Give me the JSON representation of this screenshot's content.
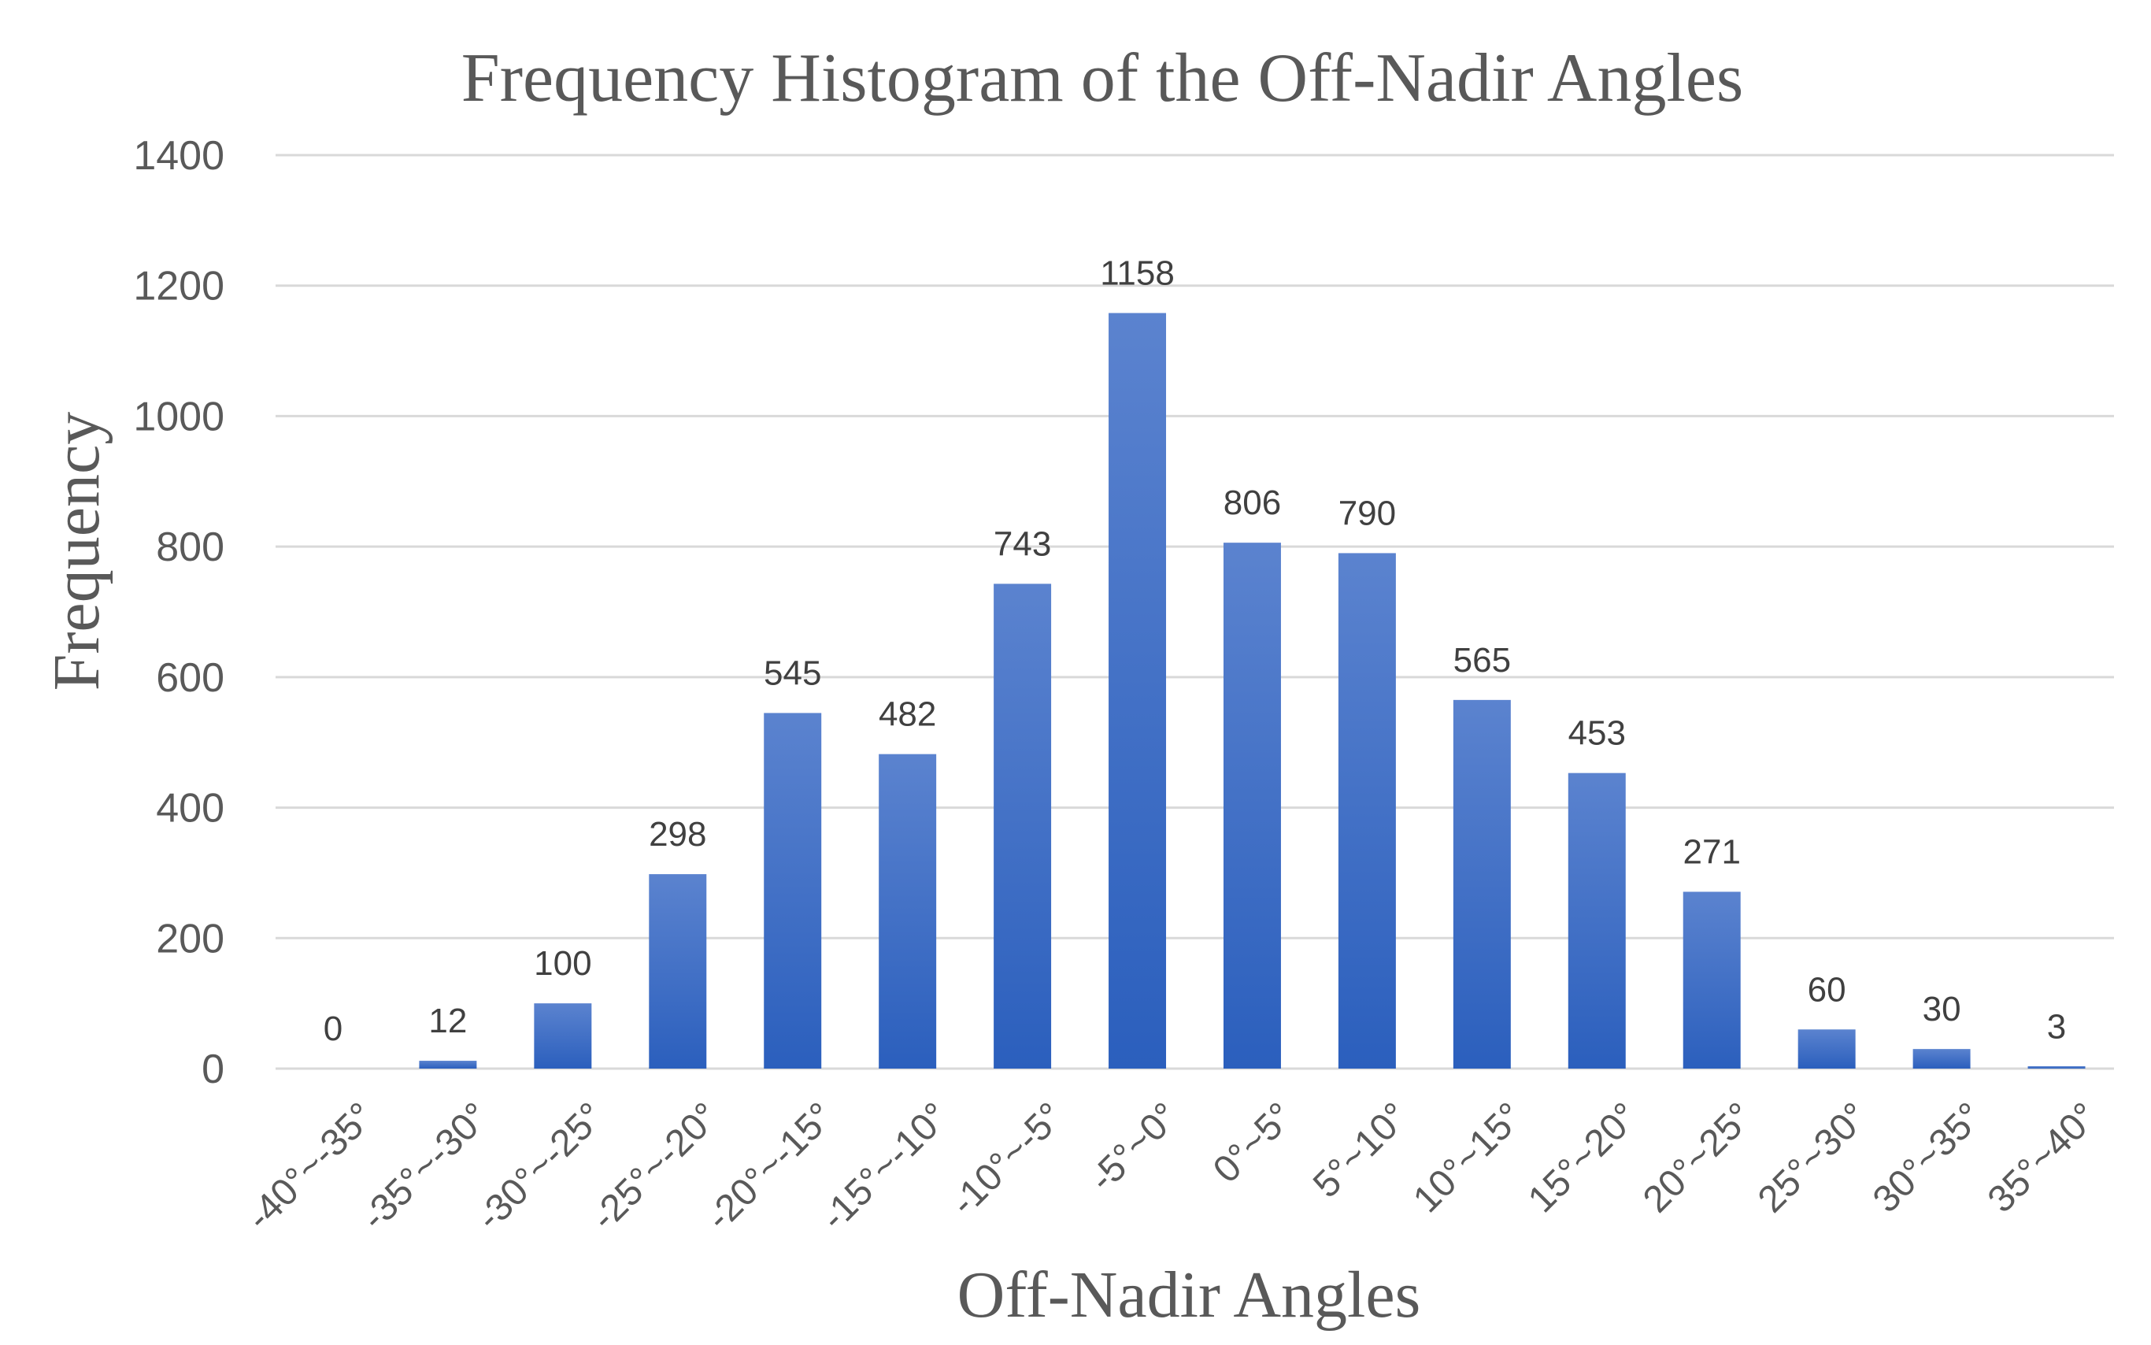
{
  "chart_data": {
    "type": "bar",
    "title": "Frequency Histogram of the Off-Nadir Angles",
    "xlabel": "Off-Nadir Angles",
    "ylabel": "Frequency",
    "categories": [
      "-40°~-35°",
      "-35°~-30°",
      "-30°~-25°",
      "-25°~-20°",
      "-20°~-15°",
      "-15°~-10°",
      "-10°~-5°",
      "-5°~0°",
      "0°~5°",
      "5°~10°",
      "10°~15°",
      "15°~20°",
      "20°~25°",
      "25°~30°",
      "30°~35°",
      "35°~40°"
    ],
    "values": [
      0,
      12,
      100,
      298,
      545,
      482,
      743,
      1158,
      806,
      790,
      565,
      453,
      271,
      60,
      30,
      3
    ],
    "data_labels": [
      "0",
      "12",
      "100",
      "298",
      "545",
      "482",
      "743",
      "1158",
      "806",
      "790",
      "565",
      "453",
      "271",
      "60",
      "30",
      "3"
    ],
    "ylim": [
      0,
      1400
    ],
    "yticks": [
      0,
      200,
      400,
      600,
      800,
      1000,
      1200,
      1400
    ],
    "ytick_labels": [
      "0",
      "200",
      "400",
      "600",
      "800",
      "1000",
      "1200",
      "1400"
    ],
    "grid": true,
    "legend": "none",
    "colors": {
      "bar_top": "#5b83cf",
      "bar_bottom": "#2b5fbd",
      "grid": "#d9d9d9",
      "text": "#595959"
    }
  }
}
